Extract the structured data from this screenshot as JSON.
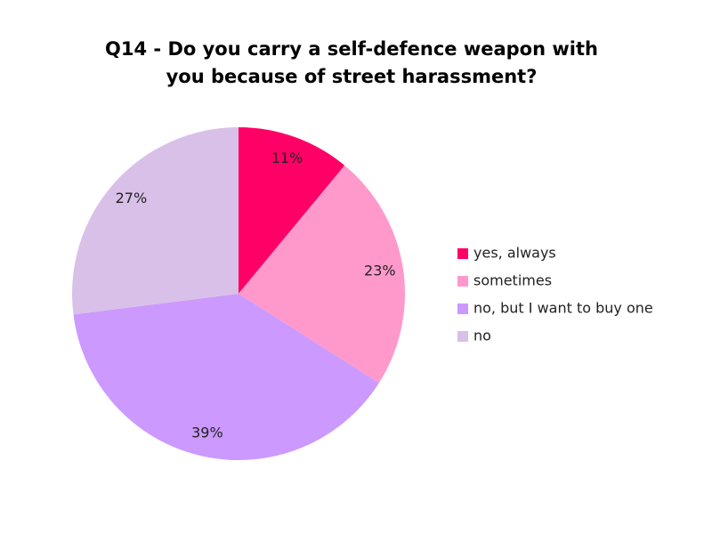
{
  "chart_data": {
    "type": "pie",
    "title": "Q14 - Do you carry a self-defence weapon with you because of street harassment?",
    "categories": [
      "yes, always",
      "sometimes",
      "no, but I want to buy one",
      "no"
    ],
    "values": [
      11,
      23,
      39,
      27
    ],
    "value_labels": [
      "11%",
      "23%",
      "39%",
      "27%"
    ],
    "colors": [
      "#ff0066",
      "#ff99cc",
      "#cc99ff",
      "#d9c0e8"
    ],
    "legend": "right"
  }
}
